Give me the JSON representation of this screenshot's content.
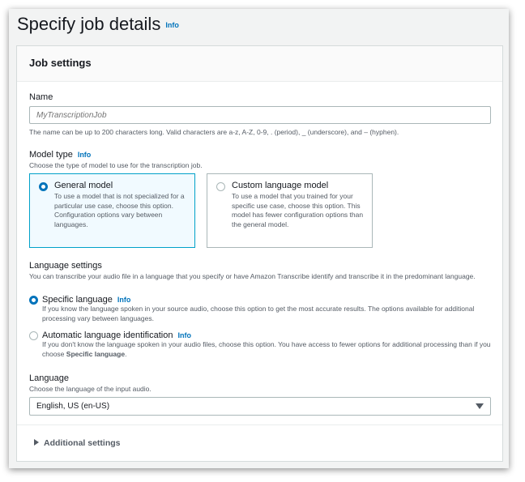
{
  "page": {
    "title": "Specify job details",
    "info": "Info"
  },
  "card": {
    "title": "Job settings"
  },
  "name": {
    "label": "Name",
    "placeholder": "MyTranscriptionJob",
    "hint": "The name can be up to 200 characters long. Valid characters are a-z, A-Z, 0-9, . (period), _ (underscore), and – (hyphen)."
  },
  "model_type": {
    "label": "Model type",
    "info": "Info",
    "desc": "Choose the type of model to use for the transcription job.",
    "options": [
      {
        "title": "General model",
        "desc": "To use a model that is not specialized for a particular use case, choose this option. Configuration options vary between languages.",
        "selected": true
      },
      {
        "title": "Custom language model",
        "desc": "To use a model that you trained for your specific use case, choose this option. This model has fewer configuration options than the general model.",
        "selected": false
      }
    ]
  },
  "language_settings": {
    "label": "Language settings",
    "desc": "You can transcribe your audio file in a language that you specify or have Amazon Transcribe identify and transcribe it in the predominant language.",
    "options": [
      {
        "title": "Specific language",
        "info": "Info",
        "desc": "If you know the language spoken in your source audio, choose this option to get the most accurate results. The options available for additional processing vary between languages.",
        "selected": true
      },
      {
        "title": "Automatic language identification",
        "info": "Info",
        "desc_pre": "If you don't know the language spoken in your audio files, choose this option. You have access to fewer options for additional processing than if you choose ",
        "desc_bold": "Specific language",
        "desc_post": ".",
        "selected": false
      }
    ]
  },
  "language": {
    "label": "Language",
    "desc": "Choose the language of the input audio.",
    "value": "English, US (en-US)"
  },
  "additional": {
    "label": "Additional settings"
  },
  "colors": {
    "accent": "#0073bb",
    "selected_border": "#00a1c9",
    "selected_bg": "#f1faff"
  }
}
